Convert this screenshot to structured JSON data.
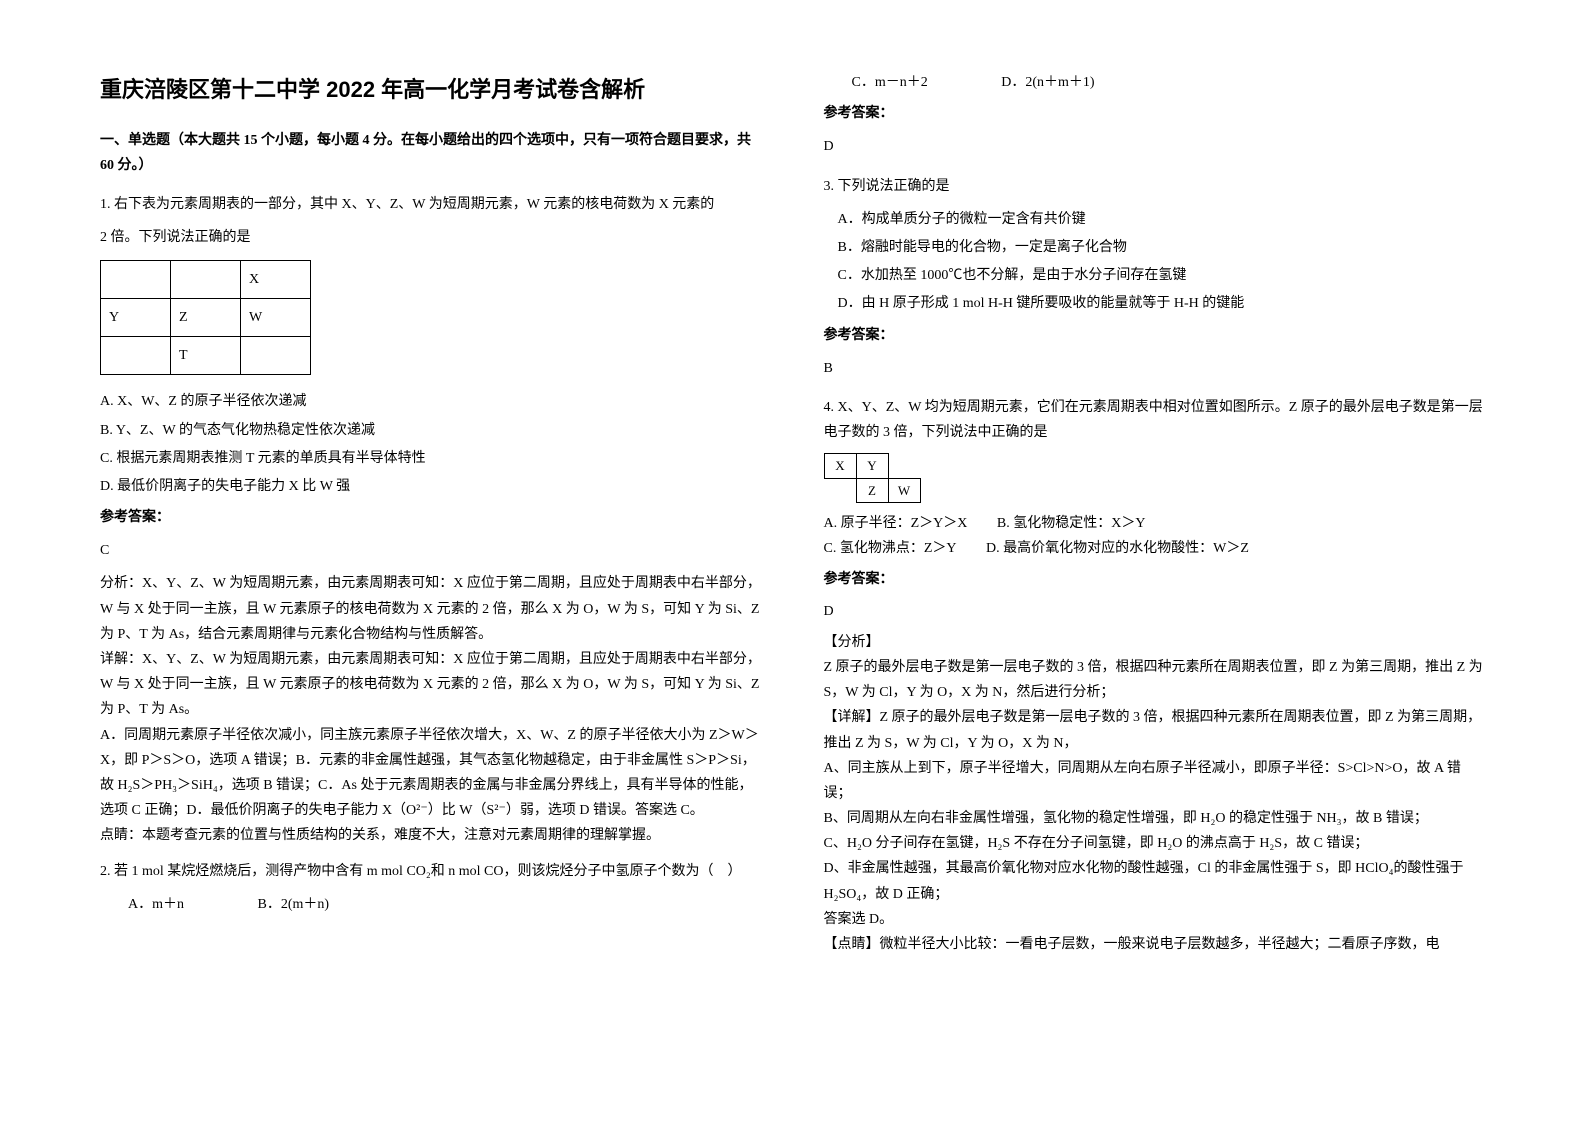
{
  "title": "重庆涪陵区第十二中学 2022 年高一化学月考试卷含解析",
  "section1": "一、单选题（本大题共 15 个小题，每小题 4 分。在每小题给出的四个选项中，只有一项符合题目要求，共 60 分。）",
  "q1": {
    "stem1": "1. 右下表为元素周期表的一部分，其中 X、Y、Z、W 为短周期元素，W 元素的核电荷数为 X 元素的",
    "stem2": "2 倍。下列说法正确的是",
    "table": [
      [
        "",
        "",
        "X"
      ],
      [
        "Y",
        "Z",
        "W"
      ],
      [
        "",
        "T",
        ""
      ]
    ],
    "optA": "A. X、W、Z 的原子半径依次递减",
    "optB": "B. Y、Z、W 的气态气化物热稳定性依次递减",
    "optC": "C. 根据元素周期表推测 T 元素的单质具有半导体特性",
    "optD": "D. 最低价阴离子的失电子能力 X 比 W 强",
    "ansLabel": "参考答案：",
    "ans": "C",
    "ana1": "分析：X、Y、Z、W 为短周期元素，由元素周期表可知：X 应位于第二周期，且应处于周期表中右半部分，W 与 X 处于同一主族，且 W 元素原子的核电荷数为 X 元素的 2 倍，那么 X 为 O，W 为 S，可知 Y 为 Si、Z 为 P、T 为 As，结合元素周期律与元素化合物结构与性质解答。",
    "ana2": "详解：X、Y、Z、W 为短周期元素，由元素周期表可知：X 应位于第二周期，且应处于周期表中右半部分，W 与 X 处于同一主族，且 W 元素原子的核电荷数为 X 元素的 2 倍，那么 X 为 O，W 为 S，可知 Y 为 Si、Z 为 P、T 为 As。",
    "ana3": "A．同周期元素原子半径依次减小，同主族元素原子半径依次增大，X、W、Z 的原子半径依大小为 Z＞W＞X，即 P＞S＞O，选项 A 错误；B．元素的非金属性越强，其气态氢化物越稳定，由于非金属性 S＞P＞Si，故 H₂S＞PH₃＞SiH₄，选项 B 错误；C．As 处于元素周期表的金属与非金属分界线上，具有半导体的性能，选项 C 正确；D．最低价阴离子的失电子能力 X（O²⁻）比 W（S²⁻）弱，选项 D 错误。答案选 C。",
    "ana4": "点睛：本题考查元素的位置与性质结构的关系，难度不大，注意对元素周期律的理解掌握。"
  },
  "q2": {
    "stem": "2. 若 1 mol 某烷烃燃烧后，测得产物中含有 m mol CO₂和 n mol CO，则该烷烃分子中氢原子个数为（　）",
    "optA": "A．m＋n",
    "optB": "B．2(m＋n)",
    "optC": "C．m－n＋2",
    "optD": "D．2(n＋m＋1)",
    "ansLabel": "参考答案：",
    "ans": "D"
  },
  "q3": {
    "stem": "3. 下列说法正确的是",
    "optA": "A．构成单质分子的微粒一定含有共价键",
    "optB": "B．熔融时能导电的化合物，一定是离子化合物",
    "optC": "C．水加热至 1000℃也不分解，是由于水分子间存在氢键",
    "optD": "D．由 H 原子形成 1 mol H-H 键所要吸收的能量就等于 H-H 的键能",
    "ansLabel": "参考答案：",
    "ans": "B"
  },
  "q4": {
    "stem": "4. X、Y、Z、W 均为短周期元素，它们在元素周期表中相对位置如图所示。Z 原子的最外层电子数是第一层电子数的 3 倍，下列说法中正确的是",
    "table": [
      [
        "X",
        "Y",
        ""
      ],
      [
        "",
        "Z",
        "W"
      ]
    ],
    "optA": "A. 原子半径：Z＞Y＞X",
    "optB": "B. 氢化物稳定性：X＞Y",
    "optC": "C. 氢化物沸点：Z＞Y",
    "optD": "D. 最高价氧化物对应的水化物酸性：W＞Z",
    "ansLabel": "参考答案：",
    "ans": "D",
    "anaLabel": "【分析】",
    "ana1": "Z 原子的最外层电子数是第一层电子数的 3 倍，根据四种元素所在周期表位置，即 Z 为第三周期，推出 Z 为 S，W 为 Cl，Y 为 O，X 为 N，然后进行分析；",
    "ana2": "【详解】Z 原子的最外层电子数是第一层电子数的 3 倍，根据四种元素所在周期表位置，即 Z 为第三周期，推出 Z 为 S，W 为 Cl，Y 为 O，X 为 N，",
    "ana3": "A、同主族从上到下，原子半径增大，同周期从左向右原子半径减小，即原子半径：S>Cl>N>O，故 A 错误；",
    "ana4": "B、同周期从左向右非金属性增强，氢化物的稳定性增强，即 H₂O 的稳定性强于 NH₃，故 B 错误；",
    "ana5": "C、H₂O 分子间存在氢键，H₂S 不存在分子间氢键，即 H₂O 的沸点高于 H₂S，故 C 错误；",
    "ana6": "D、非金属性越强，其最高价氧化物对应水化物的酸性越强，Cl 的非金属性强于 S，即 HClO₄的酸性强于 H₂SO₄，故 D 正确；",
    "ana7": "答案选 D。",
    "ana8": "【点睛】微粒半径大小比较：一看电子层数，一般来说电子层数越多，半径越大；二看原子序数，电"
  }
}
